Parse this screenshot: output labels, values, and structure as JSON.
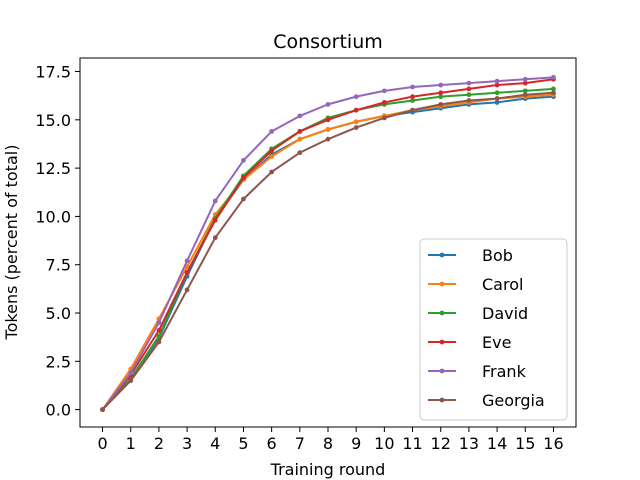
{
  "chart_data": {
    "type": "line",
    "title": "Consortium",
    "xlabel": "Training round",
    "ylabel": "Tokens (percent of total)",
    "x": [
      0,
      1,
      2,
      3,
      4,
      5,
      6,
      7,
      8,
      9,
      10,
      11,
      12,
      13,
      14,
      15,
      16
    ],
    "xlim": [
      -0.8,
      16.8
    ],
    "ylim": [
      -0.9,
      18.2
    ],
    "yticks": [
      0.0,
      2.5,
      5.0,
      7.5,
      10.0,
      12.5,
      15.0,
      17.5
    ],
    "ytick_labels": [
      "0.0",
      "2.5",
      "5.0",
      "7.5",
      "10.0",
      "12.5",
      "15.0",
      "17.5"
    ],
    "xtick_labels": [
      "0",
      "1",
      "2",
      "3",
      "4",
      "5",
      "6",
      "7",
      "8",
      "9",
      "10",
      "11",
      "12",
      "13",
      "14",
      "15",
      "16"
    ],
    "grid": false,
    "legend_position": "lower right",
    "series": [
      {
        "name": "Bob",
        "color": "#1f77b4",
        "values": [
          0.0,
          1.6,
          3.7,
          6.9,
          9.9,
          11.9,
          13.2,
          14.0,
          14.5,
          14.9,
          15.2,
          15.4,
          15.6,
          15.8,
          15.9,
          16.1,
          16.2
        ]
      },
      {
        "name": "Carol",
        "color": "#ff7f0e",
        "values": [
          0.0,
          2.1,
          4.7,
          7.4,
          10.1,
          11.9,
          13.1,
          14.0,
          14.5,
          14.9,
          15.2,
          15.5,
          15.7,
          15.9,
          16.1,
          16.2,
          16.3
        ]
      },
      {
        "name": "David",
        "color": "#2ca02c",
        "values": [
          0.0,
          1.6,
          3.8,
          7.1,
          9.9,
          12.1,
          13.5,
          14.4,
          15.1,
          15.5,
          15.8,
          16.0,
          16.2,
          16.3,
          16.4,
          16.5,
          16.6
        ]
      },
      {
        "name": "Eve",
        "color": "#d62728",
        "values": [
          0.0,
          1.8,
          4.1,
          7.1,
          9.8,
          12.0,
          13.4,
          14.4,
          15.0,
          15.5,
          15.9,
          16.2,
          16.4,
          16.6,
          16.8,
          16.9,
          17.1
        ]
      },
      {
        "name": "Frank",
        "color": "#9467bd",
        "values": [
          0.0,
          1.9,
          4.5,
          7.7,
          10.8,
          12.9,
          14.4,
          15.2,
          15.8,
          16.2,
          16.5,
          16.7,
          16.8,
          16.9,
          17.0,
          17.1,
          17.2
        ]
      },
      {
        "name": "Georgia",
        "color": "#8c564b",
        "values": [
          0.0,
          1.5,
          3.5,
          6.2,
          8.9,
          10.9,
          12.3,
          13.3,
          14.0,
          14.6,
          15.1,
          15.5,
          15.8,
          16.0,
          16.1,
          16.3,
          16.4
        ]
      }
    ]
  }
}
